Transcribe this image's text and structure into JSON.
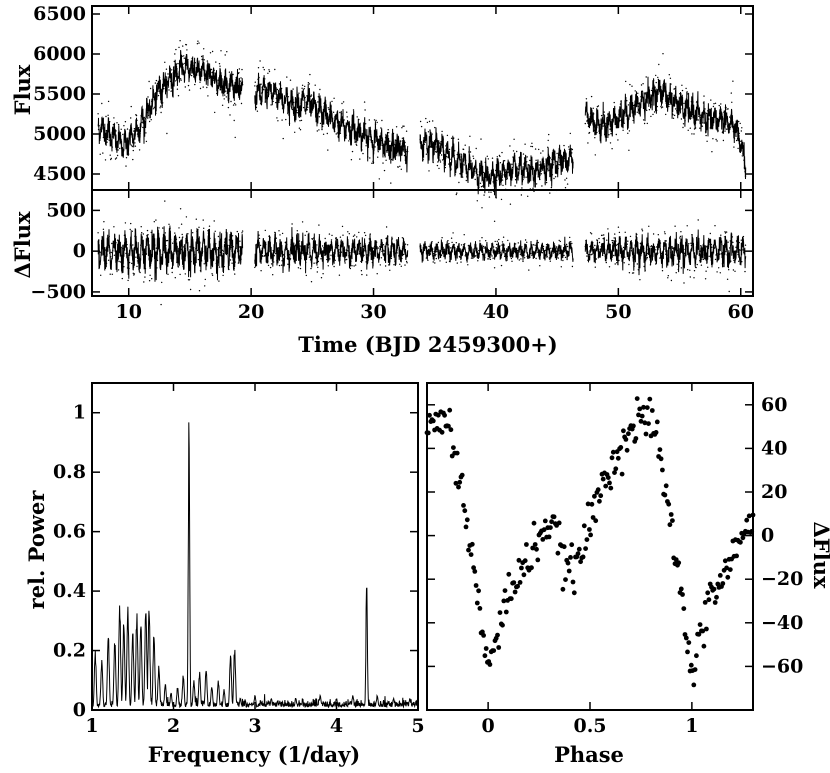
{
  "chart_data": [
    {
      "id": "flux",
      "type": "scatter",
      "title": "",
      "xlabel": "",
      "ylabel": "Flux",
      "xlim": [
        7,
        61
      ],
      "ylim": [
        4300,
        6600
      ],
      "xticks": [
        10,
        20,
        30,
        40,
        50,
        60
      ],
      "yticks": [
        4500,
        5000,
        5500,
        6000,
        6500
      ],
      "grid": false,
      "segments": [
        {
          "x": [
            7.5,
            8.5,
            9.5,
            10.5,
            11.5,
            12.5,
            13.5,
            14.5,
            15.5,
            16.5,
            17.5,
            18.5,
            19.3
          ],
          "y": [
            5100,
            5000,
            4850,
            5000,
            5250,
            5550,
            5700,
            5850,
            5800,
            5750,
            5650,
            5600,
            5550
          ]
        },
        {
          "x": [
            20.3,
            21.5,
            22.5,
            23.5,
            24.5,
            25.5,
            26.5,
            27.5,
            28.5,
            29.5,
            30.5,
            31.5,
            32.8
          ],
          "y": [
            5500,
            5550,
            5450,
            5350,
            5400,
            5300,
            5200,
            5100,
            5050,
            4950,
            4900,
            4850,
            4800
          ]
        },
        {
          "x": [
            33.8,
            35,
            36,
            37,
            38,
            39,
            40,
            41,
            42,
            43,
            44,
            45,
            46.3
          ],
          "y": [
            4900,
            4850,
            4750,
            4650,
            4550,
            4450,
            4500,
            4550,
            4550,
            4500,
            4600,
            4650,
            4700
          ]
        },
        {
          "x": [
            47.3,
            48.5,
            49.5,
            50.5,
            51.5,
            52.5,
            53.5,
            54.5,
            55.5,
            56.5,
            57.5,
            58.5,
            59.5,
            60.4
          ],
          "y": [
            5250,
            5100,
            5150,
            5250,
            5350,
            5450,
            5550,
            5400,
            5300,
            5250,
            5150,
            5200,
            5100,
            4650
          ]
        }
      ]
    },
    {
      "id": "dflux",
      "type": "scatter",
      "title": "",
      "xlabel": "Time (BJD 2459300+)",
      "ylabel": "ΔFlux",
      "xlim": [
        7,
        61
      ],
      "ylim": [
        -550,
        750
      ],
      "xticks": [
        10,
        20,
        30,
        40,
        50,
        60
      ],
      "yticks": [
        -500,
        0,
        500
      ],
      "grid": false,
      "segments": [
        {
          "x_range": [
            7.5,
            19.3
          ],
          "amplitude": [
            220,
            280,
            220
          ]
        },
        {
          "x_range": [
            20.3,
            32.8
          ],
          "amplitude": [
            200,
            170,
            150
          ]
        },
        {
          "x_range": [
            33.8,
            46.3
          ],
          "amplitude": [
            110,
            100,
            110
          ]
        },
        {
          "x_range": [
            47.3,
            60.4
          ],
          "amplitude": [
            130,
            200,
            180
          ]
        }
      ]
    },
    {
      "id": "periodogram",
      "type": "line",
      "title": "",
      "xlabel": "Frequency (1/day)",
      "ylabel": "rel. Power",
      "xlim": [
        1,
        5
      ],
      "ylim": [
        0,
        1.1
      ],
      "xticks": [
        1,
        2,
        3,
        4,
        5
      ],
      "yticks": [
        0,
        0.2,
        0.4,
        0.6,
        0.8,
        1
      ],
      "grid": false,
      "peaks": [
        {
          "f": 1.04,
          "p": 0.2
        },
        {
          "f": 1.12,
          "p": 0.17
        },
        {
          "f": 1.2,
          "p": 0.26
        },
        {
          "f": 1.28,
          "p": 0.24
        },
        {
          "f": 1.34,
          "p": 0.36
        },
        {
          "f": 1.39,
          "p": 0.3
        },
        {
          "f": 1.44,
          "p": 0.35
        },
        {
          "f": 1.5,
          "p": 0.27
        },
        {
          "f": 1.55,
          "p": 0.33
        },
        {
          "f": 1.6,
          "p": 0.3
        },
        {
          "f": 1.66,
          "p": 0.35
        },
        {
          "f": 1.7,
          "p": 0.35
        },
        {
          "f": 1.76,
          "p": 0.26
        },
        {
          "f": 1.82,
          "p": 0.15
        },
        {
          "f": 1.9,
          "p": 0.09
        },
        {
          "f": 1.97,
          "p": 0.06
        },
        {
          "f": 2.05,
          "p": 0.08
        },
        {
          "f": 2.12,
          "p": 0.12
        },
        {
          "f": 2.19,
          "p": 1.0
        },
        {
          "f": 2.25,
          "p": 0.1
        },
        {
          "f": 2.32,
          "p": 0.13
        },
        {
          "f": 2.4,
          "p": 0.14
        },
        {
          "f": 2.47,
          "p": 0.08
        },
        {
          "f": 2.55,
          "p": 0.1
        },
        {
          "f": 2.62,
          "p": 0.07
        },
        {
          "f": 2.7,
          "p": 0.19
        },
        {
          "f": 2.75,
          "p": 0.21
        },
        {
          "f": 2.82,
          "p": 0.04
        },
        {
          "f": 3.0,
          "p": 0.05
        },
        {
          "f": 3.2,
          "p": 0.04
        },
        {
          "f": 3.5,
          "p": 0.04
        },
        {
          "f": 3.8,
          "p": 0.05
        },
        {
          "f": 4.0,
          "p": 0.04
        },
        {
          "f": 4.2,
          "p": 0.05
        },
        {
          "f": 4.37,
          "p": 0.45
        },
        {
          "f": 4.5,
          "p": 0.05
        },
        {
          "f": 4.7,
          "p": 0.04
        },
        {
          "f": 4.9,
          "p": 0.04
        }
      ]
    },
    {
      "id": "phase",
      "type": "scatter",
      "title": "",
      "xlabel": "Phase",
      "ylabel": "ΔFlux",
      "xlim": [
        -0.3,
        1.3
      ],
      "ylim": [
        -80,
        70
      ],
      "xticks": [
        0,
        0.5,
        1
      ],
      "xtick_labels": [
        "0",
        "0.5",
        "1"
      ],
      "yticks": [
        -60,
        -40,
        -20,
        0,
        20,
        40,
        60
      ],
      "grid": false,
      "profile": {
        "phase": [
          0.0,
          0.05,
          0.1,
          0.15,
          0.2,
          0.25,
          0.3,
          0.35,
          0.4,
          0.45,
          0.5,
          0.55,
          0.6,
          0.65,
          0.7,
          0.75,
          0.8,
          0.85,
          0.9,
          0.95,
          1.0
        ],
        "dflux": [
          -62,
          -45,
          -25,
          -20,
          -10,
          0,
          5,
          -5,
          -18,
          -10,
          5,
          20,
          32,
          42,
          48,
          52,
          55,
          30,
          5,
          -30,
          -62
        ]
      }
    }
  ]
}
